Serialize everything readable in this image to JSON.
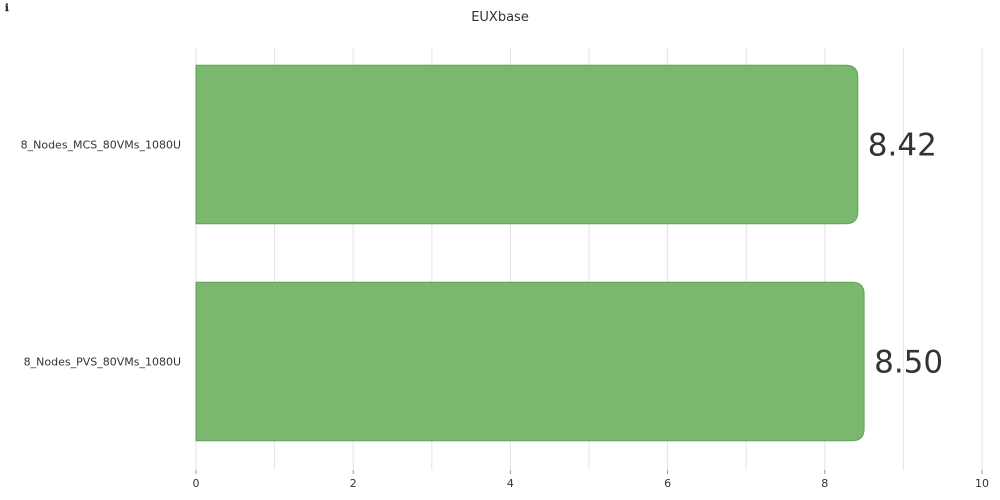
{
  "header": {
    "info_icon": "info-icon",
    "info_glyph": "ℹ"
  },
  "chart_data": {
    "type": "bar",
    "orientation": "horizontal",
    "title": "EUXbase",
    "categories": [
      "8_Nodes_MCS_80VMs_1080U",
      "8_Nodes_PVS_80VMs_1080U"
    ],
    "values": [
      8.42,
      8.5
    ],
    "value_labels": [
      "8.42",
      "8.50"
    ],
    "xlim": [
      0,
      10
    ],
    "xticks": [
      0,
      2,
      4,
      6,
      8,
      10
    ],
    "grid": true,
    "bar_color": "#7ab76f",
    "bar_edge_color": "#5fa255",
    "xlabel": "",
    "ylabel": ""
  }
}
